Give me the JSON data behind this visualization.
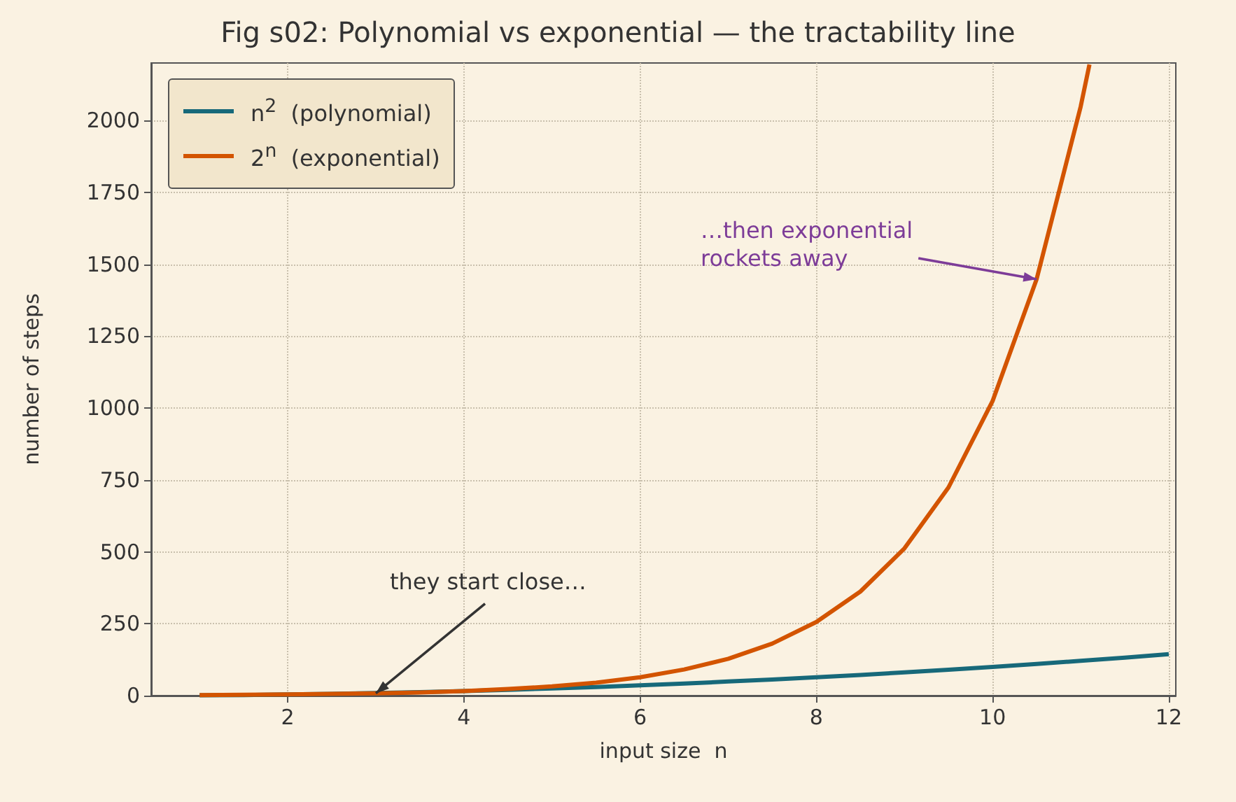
{
  "chart_data": {
    "type": "line",
    "title": "Fig s02: Polynomial vs exponential — the tractability line",
    "xlabel": "input size  n",
    "ylabel": "number of steps",
    "series": [
      {
        "name": "n$^{2}$  (polynomial)",
        "color": "#17697a",
        "x": [
          1,
          1.5,
          2,
          2.5,
          3,
          3.5,
          4,
          4.5,
          5,
          5.5,
          6,
          6.5,
          7,
          7.5,
          8,
          8.5,
          9,
          9.5,
          10,
          10.5,
          11,
          11.5,
          12
        ],
        "values": [
          1,
          2,
          4,
          6,
          9,
          12,
          16,
          20,
          25,
          30,
          36,
          42,
          49,
          56,
          64,
          72,
          81,
          90,
          100,
          110,
          121,
          132,
          144
        ]
      },
      {
        "name": "2$^{n}$  (exponential)",
        "color": "#d35400",
        "x": [
          1,
          1.5,
          2,
          2.5,
          3,
          3.5,
          4,
          4.5,
          5,
          5.5,
          6,
          6.5,
          7,
          7.5,
          8,
          8.5,
          9,
          9.5,
          10,
          10.5,
          11,
          11.1
        ],
        "values": [
          2,
          3,
          4,
          6,
          8,
          11,
          16,
          23,
          32,
          45,
          64,
          91,
          128,
          181,
          256,
          362,
          512,
          724,
          1024,
          1448,
          2048,
          2195
        ]
      }
    ],
    "xlim": [
      0.45,
      12.08
    ],
    "ylim": [
      0,
      2200
    ],
    "xticks": [
      2,
      4,
      6,
      8,
      10,
      12
    ],
    "yticks": [
      0,
      250,
      500,
      750,
      1000,
      1250,
      1500,
      1750,
      2000
    ],
    "grid": true,
    "legend": "top left",
    "line_style": "solid",
    "annotations": [
      {
        "text": "they start close…",
        "x": 3,
        "y": 8
      },
      {
        "text": "…then exponential\nrockets away",
        "x": 10.5,
        "y": 1448
      }
    ]
  }
}
